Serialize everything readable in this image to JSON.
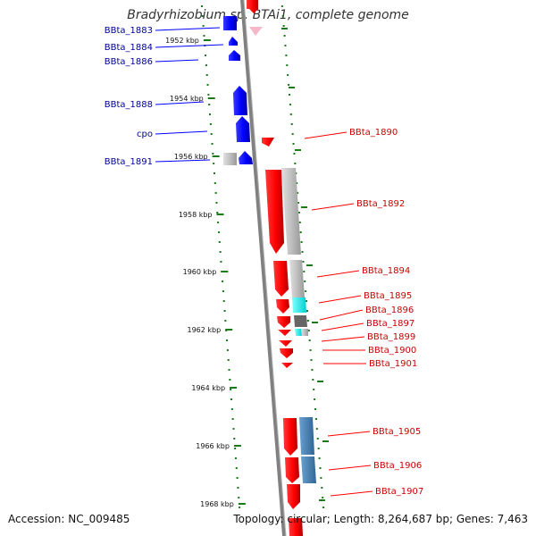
{
  "title": "Bradyrhizobium sp. BTAi1, complete genome",
  "footer": {
    "accession": "Accession: NC_009485",
    "summary": "Topology: circular; Length: 8,264,687 bp; Genes: 7,463"
  },
  "colors": {
    "backbone": "#808080",
    "forward_gene": "#ff0000",
    "reverse_gene": "#0000ff",
    "rna": "#00ffff",
    "pseudo": "#bfbfbf",
    "dark_feature": "#666666",
    "steel_feature": "#4a84b8",
    "tick": "#1a7a1a",
    "forward_label": "#cc0000",
    "reverse_label": "#000099"
  },
  "scale_ticks": [
    {
      "label": "1952 kbp",
      "kbp": 1952
    },
    {
      "label": "1954 kbp",
      "kbp": 1954
    },
    {
      "label": "1956 kbp",
      "kbp": 1956
    },
    {
      "label": "1958 kbp",
      "kbp": 1958
    },
    {
      "label": "1960 kbp",
      "kbp": 1960
    },
    {
      "label": "1962 kbp",
      "kbp": 1962
    },
    {
      "label": "1964 kbp",
      "kbp": 1964
    },
    {
      "label": "1966 kbp",
      "kbp": 1966
    },
    {
      "label": "1968 kbp",
      "kbp": 1968
    }
  ],
  "reverse_genes": [
    {
      "label": "BBta_1883"
    },
    {
      "label": "BBta_1884"
    },
    {
      "label": "BBta_1886"
    },
    {
      "label": "BBta_1888"
    },
    {
      "label": "cpo"
    },
    {
      "label": "BBta_1891"
    }
  ],
  "forward_genes": [
    {
      "label": "BBta_1890"
    },
    {
      "label": "BBta_1892"
    },
    {
      "label": "BBta_1894"
    },
    {
      "label": "BBta_1895"
    },
    {
      "label": "BBta_1896"
    },
    {
      "label": "BBta_1897"
    },
    {
      "label": "BBta_1899"
    },
    {
      "label": "BBta_1900"
    },
    {
      "label": "BBta_1901"
    },
    {
      "label": "BBta_1905"
    },
    {
      "label": "BBta_1906"
    },
    {
      "label": "BBta_1907"
    }
  ]
}
